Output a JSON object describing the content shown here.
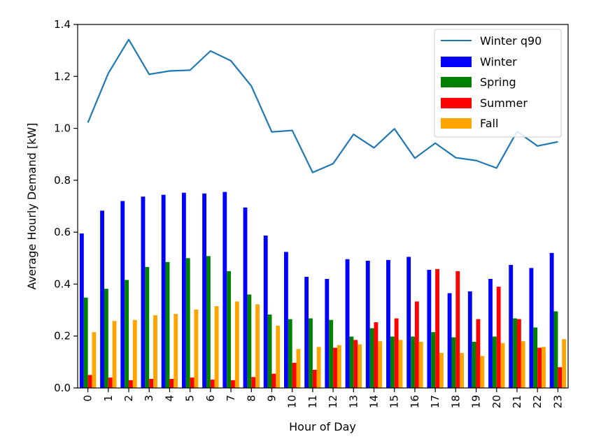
{
  "chart_data": {
    "type": "bar",
    "title": "",
    "xlabel": "Hour of Day",
    "ylabel": "Average Hourly Demand [kW]",
    "ylim": [
      0,
      1.4
    ],
    "yticks": [
      "0.0",
      "0.2",
      "0.4",
      "0.6",
      "0.8",
      "1.0",
      "1.2",
      "1.4"
    ],
    "categories": [
      "0",
      "1",
      "2",
      "3",
      "4",
      "5",
      "6",
      "7",
      "8",
      "9",
      "10",
      "11",
      "12",
      "13",
      "14",
      "15",
      "16",
      "17",
      "18",
      "19",
      "20",
      "21",
      "22",
      "23"
    ],
    "series": [
      {
        "name": "Winter",
        "color": "#0000ff",
        "values": [
          0.595,
          0.683,
          0.72,
          0.737,
          0.744,
          0.752,
          0.749,
          0.755,
          0.695,
          0.587,
          0.524,
          0.428,
          0.42,
          0.496,
          0.49,
          0.493,
          0.505,
          0.455,
          0.365,
          0.372,
          0.42,
          0.474,
          0.462,
          0.52
        ]
      },
      {
        "name": "Spring",
        "color": "#008000",
        "values": [
          0.348,
          0.382,
          0.416,
          0.466,
          0.485,
          0.5,
          0.508,
          0.45,
          0.36,
          0.283,
          0.265,
          0.268,
          0.262,
          0.198,
          0.23,
          0.198,
          0.198,
          0.215,
          0.195,
          0.178,
          0.198,
          0.268,
          0.233,
          0.295
        ]
      },
      {
        "name": "Summer",
        "color": "#ff0000",
        "values": [
          0.05,
          0.04,
          0.03,
          0.035,
          0.035,
          0.04,
          0.032,
          0.03,
          0.042,
          0.055,
          0.097,
          0.07,
          0.155,
          0.185,
          0.253,
          0.268,
          0.333,
          0.458,
          0.45,
          0.265,
          0.39,
          0.265,
          0.155,
          0.08
        ]
      },
      {
        "name": "Fall",
        "color": "#ffa500",
        "values": [
          0.215,
          0.258,
          0.262,
          0.28,
          0.285,
          0.302,
          0.315,
          0.333,
          0.322,
          0.24,
          0.15,
          0.158,
          0.165,
          0.168,
          0.18,
          0.185,
          0.178,
          0.135,
          0.135,
          0.123,
          0.173,
          0.18,
          0.158,
          0.188
        ]
      }
    ],
    "line_series": {
      "name": "Winter q90",
      "color": "#1f77b4",
      "values": [
        1.022,
        1.212,
        1.342,
        1.208,
        1.221,
        1.224,
        1.298,
        1.26,
        1.163,
        0.986,
        0.992,
        0.83,
        0.864,
        0.977,
        0.925,
        0.998,
        0.885,
        0.943,
        0.887,
        0.876,
        0.847,
        0.988,
        0.932,
        0.948
      ]
    },
    "legend": "top-right",
    "grid": false
  }
}
